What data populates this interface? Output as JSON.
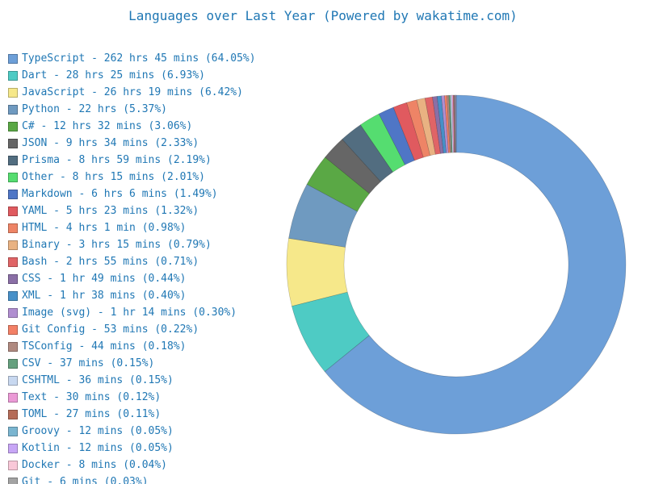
{
  "chart_data": {
    "type": "pie",
    "donut": true,
    "title": "Languages over Last Year (Powered by wakatime.com)",
    "legend_position": "left",
    "slices": [
      {
        "label": "TypeScript - 262 hrs 45 mins (64.05%)",
        "name": "TypeScript",
        "value": 64.05,
        "color": "#6d9fd8"
      },
      {
        "label": "Dart - 28 hrs 25 mins (6.93%)",
        "name": "Dart",
        "value": 6.93,
        "color": "#4ecbc4"
      },
      {
        "label": "JavaScript - 26 hrs 19 mins (6.42%)",
        "name": "JavaScript",
        "value": 6.42,
        "color": "#f6e88a"
      },
      {
        "label": "Python - 22 hrs (5.37%)",
        "name": "Python",
        "value": 5.37,
        "color": "#6f9ac0"
      },
      {
        "label": "C# - 12 hrs 32 mins (3.06%)",
        "name": "C#",
        "value": 3.06,
        "color": "#5aa845"
      },
      {
        "label": "JSON - 9 hrs 34 mins (2.33%)",
        "name": "JSON",
        "value": 2.33,
        "color": "#666666"
      },
      {
        "label": "Prisma - 8 hrs 59 mins (2.19%)",
        "name": "Prisma",
        "value": 2.19,
        "color": "#526d80"
      },
      {
        "label": "Other - 8 hrs 15 mins (2.01%)",
        "name": "Other",
        "value": 2.01,
        "color": "#55dd70"
      },
      {
        "label": "Markdown - 6 hrs 6 mins (1.49%)",
        "name": "Markdown",
        "value": 1.49,
        "color": "#4f76c6"
      },
      {
        "label": "YAML - 5 hrs 23 mins (1.32%)",
        "name": "YAML",
        "value": 1.32,
        "color": "#e05a5f"
      },
      {
        "label": "HTML - 4 hrs 1 min (0.98%)",
        "name": "HTML",
        "value": 0.98,
        "color": "#ee8466"
      },
      {
        "label": "Binary - 3 hrs 15 mins (0.79%)",
        "name": "Binary",
        "value": 0.79,
        "color": "#e9b282"
      },
      {
        "label": "Bash - 2 hrs 55 mins (0.71%)",
        "name": "Bash",
        "value": 0.71,
        "color": "#e06466"
      },
      {
        "label": "CSS - 1 hr 49 mins (0.44%)",
        "name": "CSS",
        "value": 0.44,
        "color": "#8a6fa6"
      },
      {
        "label": "XML - 1 hr 38 mins (0.40%)",
        "name": "XML",
        "value": 0.4,
        "color": "#4790c8"
      },
      {
        "label": "Image (svg) - 1 hr 14 mins (0.30%)",
        "name": "Image (svg)",
        "value": 0.3,
        "color": "#b08ed0"
      },
      {
        "label": "Git Config - 53 mins (0.22%)",
        "name": "Git Config",
        "value": 0.22,
        "color": "#f38066"
      },
      {
        "label": "TSConfig - 44 mins (0.18%)",
        "name": "TSConfig",
        "value": 0.18,
        "color": "#b08a80"
      },
      {
        "label": "CSV - 37 mins (0.15%)",
        "name": "CSV",
        "value": 0.15,
        "color": "#65a07e"
      },
      {
        "label": "CSHTML - 36 mins (0.15%)",
        "name": "CSHTML",
        "value": 0.15,
        "color": "#c8d8f0"
      },
      {
        "label": "Text - 30 mins (0.12%)",
        "name": "Text",
        "value": 0.12,
        "color": "#eb9ad6"
      },
      {
        "label": "TOML - 27 mins (0.11%)",
        "name": "TOML",
        "value": 0.11,
        "color": "#b56c58"
      },
      {
        "label": "Groovy - 12 mins (0.05%)",
        "name": "Groovy",
        "value": 0.05,
        "color": "#7ab5d0"
      },
      {
        "label": "Kotlin - 12 mins (0.05%)",
        "name": "Kotlin",
        "value": 0.05,
        "color": "#c7a6f6"
      },
      {
        "label": "Docker - 8 mins (0.04%)",
        "name": "Docker",
        "value": 0.04,
        "color": "#f9c8d8"
      },
      {
        "label": "Git - 6 mins (0.03%)",
        "name": "Git",
        "value": 0.03,
        "color": "#a3a3a3"
      }
    ]
  }
}
